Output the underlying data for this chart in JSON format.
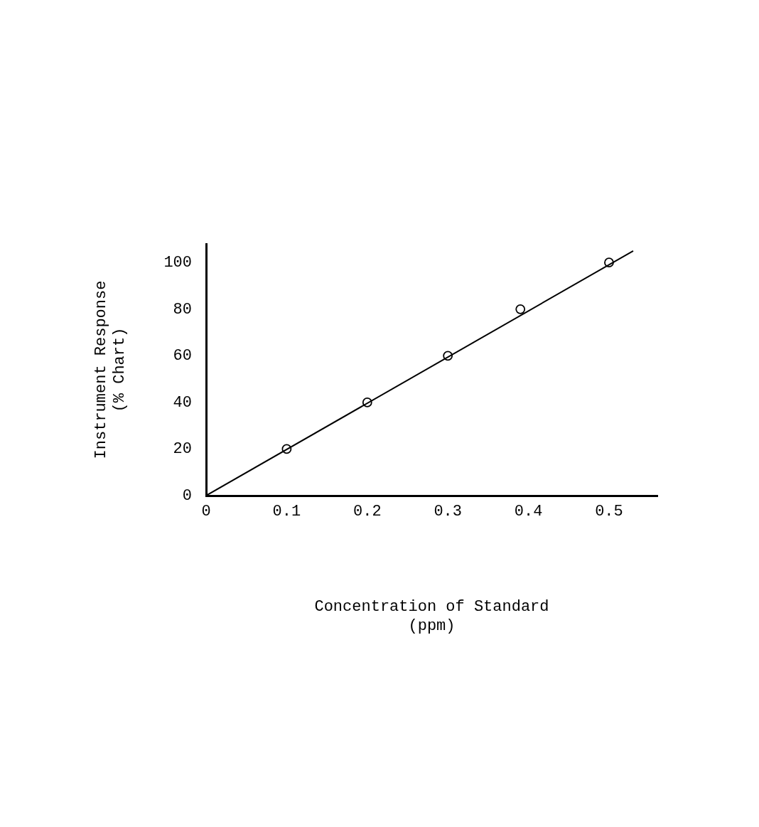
{
  "chart_data": {
    "type": "scatter",
    "xlabel": "Concentration of Standard\n(ppm)",
    "ylabel": "Instrument Response\n(% Chart)",
    "xlim": [
      0,
      0.56
    ],
    "ylim": [
      0,
      108
    ],
    "xticks": [
      0,
      0.1,
      0.2,
      0.3,
      0.4,
      0.5
    ],
    "yticks": [
      0,
      20,
      40,
      60,
      80,
      100
    ],
    "grid": false,
    "legend": false,
    "marker": "circle",
    "series": [
      {
        "color": "#000000",
        "x": [
          0.1,
          0.2,
          0.3,
          0.39,
          0.5
        ],
        "values": [
          20,
          40,
          60,
          80,
          100
        ]
      },
      {
        "type": "line",
        "color": "#000000",
        "marker": "none",
        "x": [
          0,
          0.53
        ],
        "values": [
          0,
          105
        ]
      }
    ]
  }
}
